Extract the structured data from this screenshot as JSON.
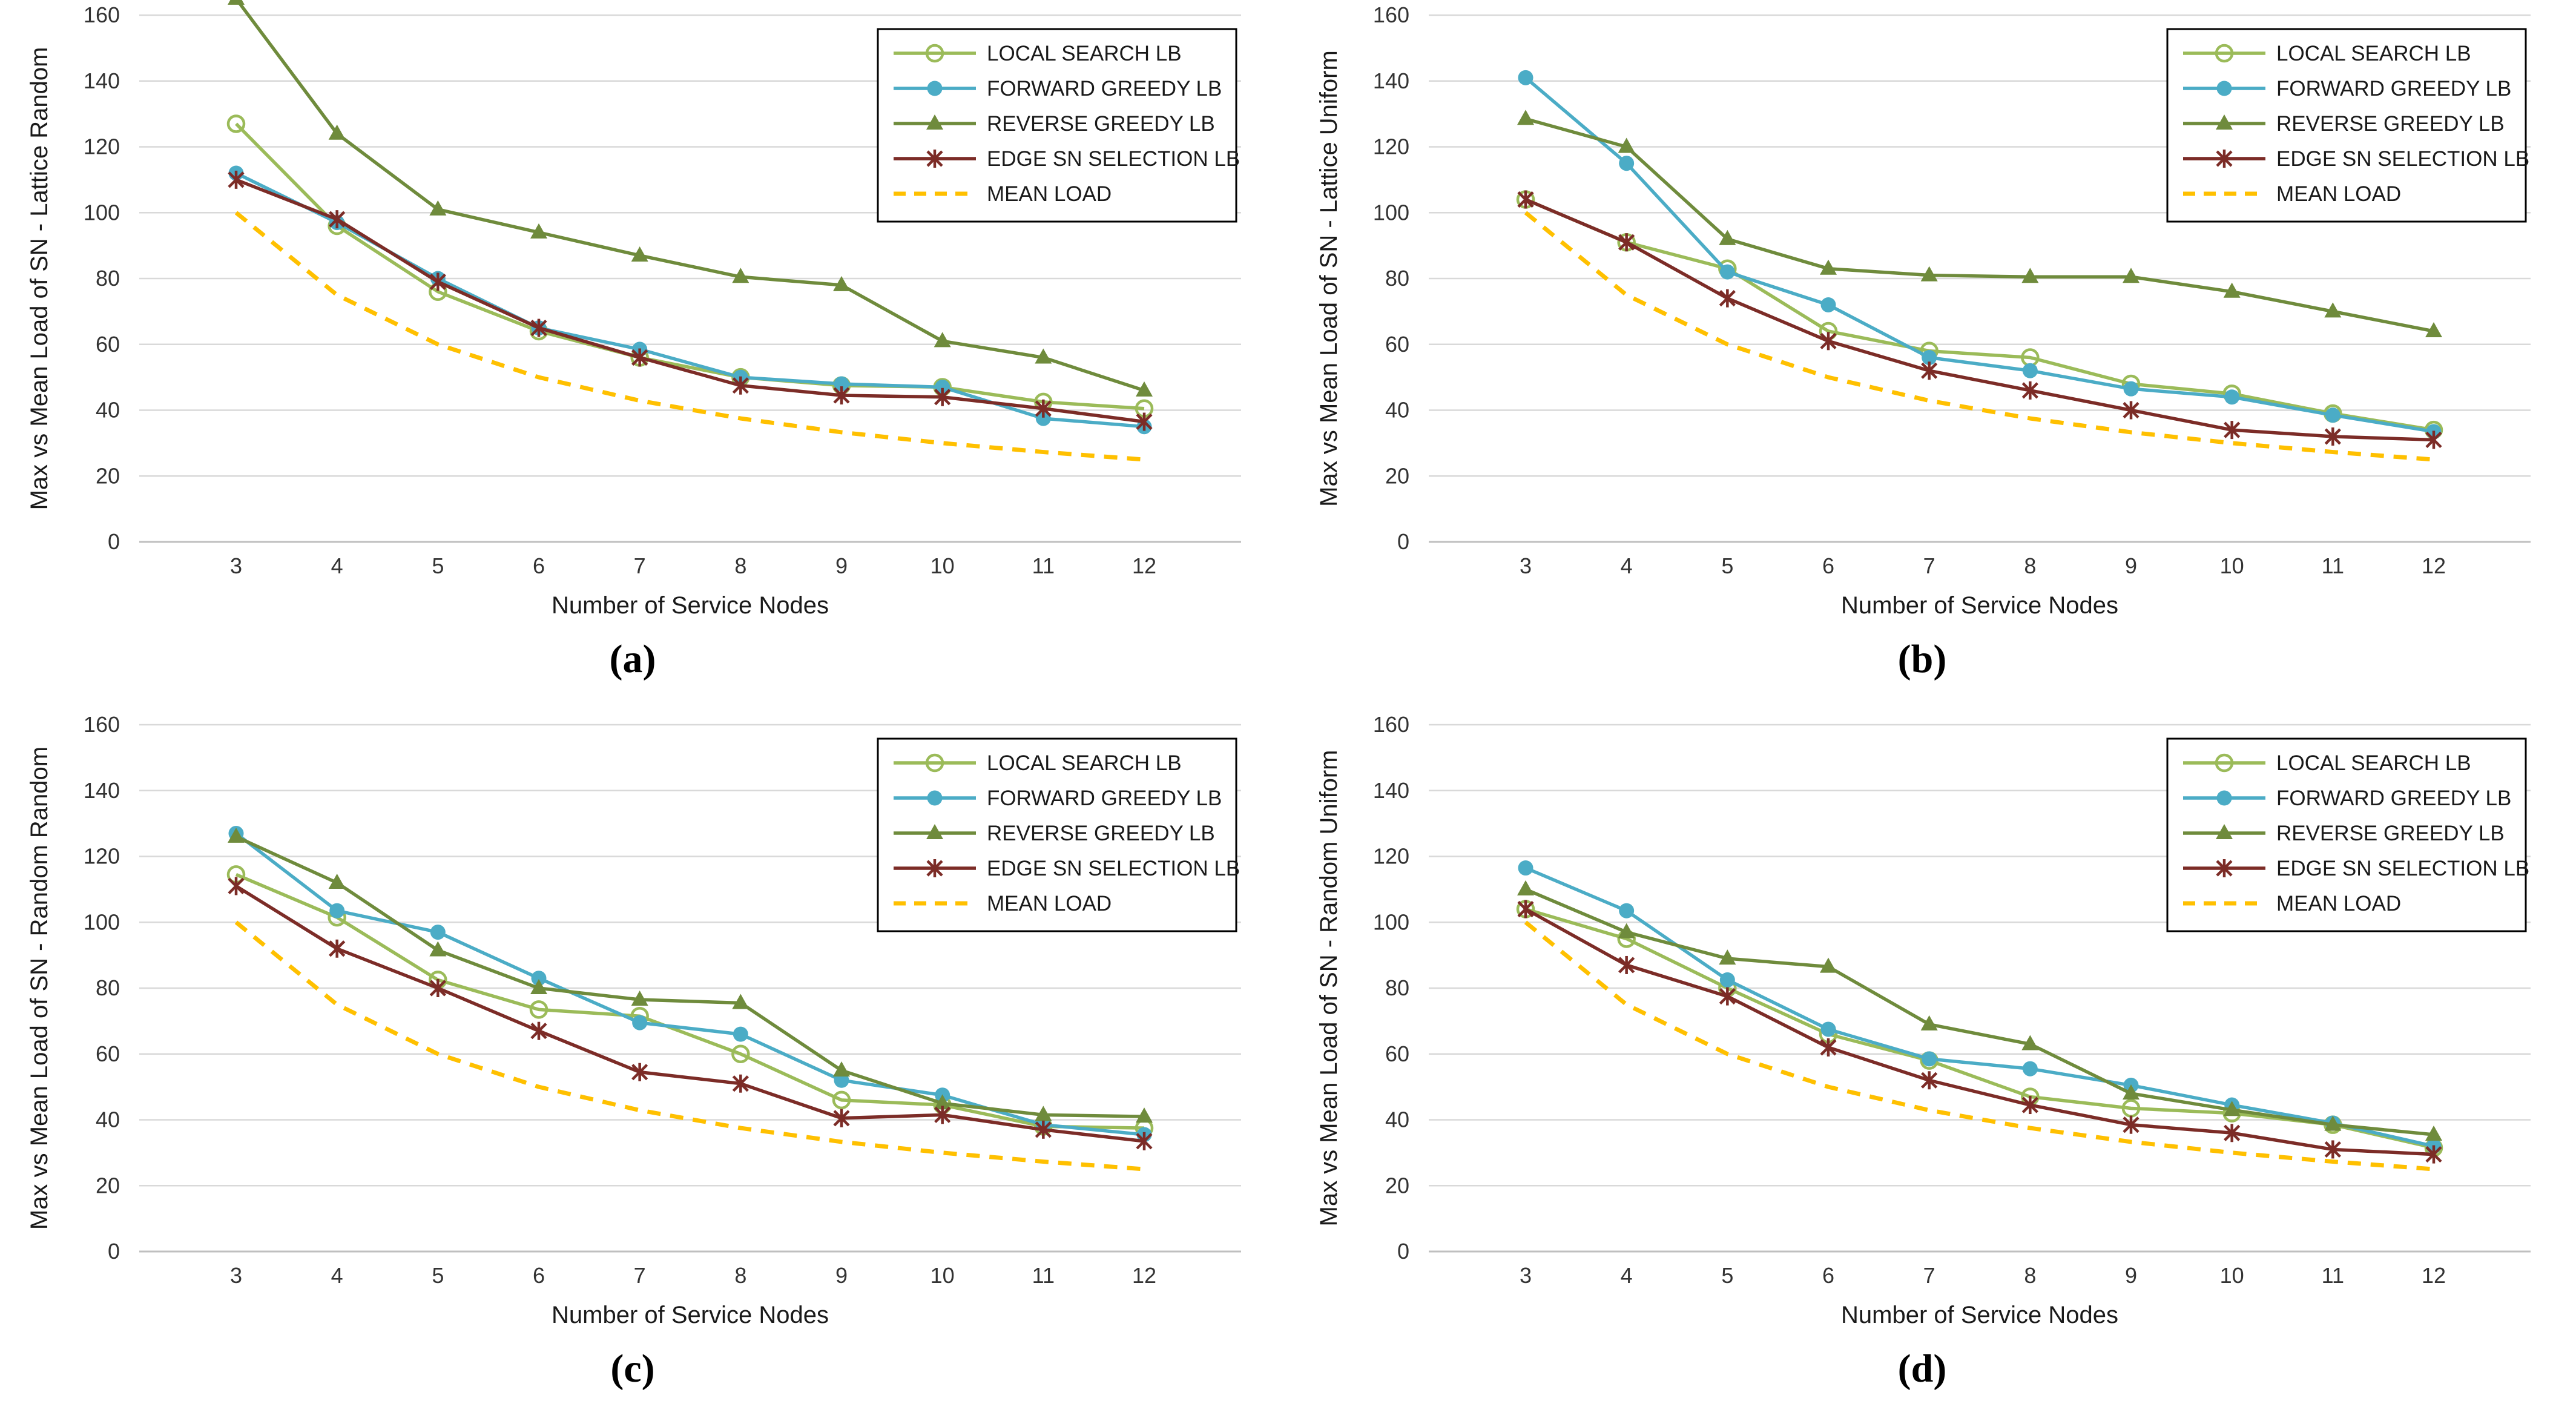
{
  "figure": {
    "xlabel": "Number of Service Nodes",
    "categories": [
      3,
      4,
      5,
      6,
      7,
      8,
      9,
      10,
      11,
      12
    ],
    "ylim": [
      0,
      160
    ],
    "ytick_step": 20,
    "grid_color": "#D9D9D9",
    "axis_color": "#BFBFBF",
    "legend_entries": [
      "LOCAL SEARCH LB",
      "FORWARD GREEDY LB",
      "REVERSE GREEDY LB",
      "EDGE SN SELECTION LB",
      "MEAN LOAD"
    ],
    "colors": {
      "local_search": "#9BBB59",
      "forward_greedy": "#4BACC6",
      "reverse_greedy": "#6F8B3C",
      "edge_sn": "#7C2C27",
      "mean_load": "#FFC000"
    }
  },
  "chart_data": [
    {
      "type": "line",
      "caption": "(a)",
      "ylabel": "Max vs Mean Load of SN - Lattice Random",
      "xlabel": "Number of Service Nodes",
      "x": [
        3,
        4,
        5,
        6,
        7,
        8,
        9,
        10,
        11,
        12
      ],
      "ylim": [
        0,
        160
      ],
      "legend_position": "top-right",
      "series": [
        {
          "name": "LOCAL SEARCH LB",
          "color": "#9BBB59",
          "marker": "circle-open",
          "dash": false,
          "values": [
            127,
            96,
            76,
            64,
            56,
            50,
            47.5,
            47,
            42.5,
            40.5
          ]
        },
        {
          "name": "FORWARD GREEDY LB",
          "color": "#4BACC6",
          "marker": "circle",
          "dash": false,
          "values": [
            112,
            97,
            80,
            65,
            58.5,
            50,
            48,
            47,
            37.5,
            35
          ]
        },
        {
          "name": "REVERSE GREEDY LB",
          "color": "#6F8B3C",
          "marker": "triangle",
          "dash": false,
          "values": [
            165,
            124,
            101,
            94,
            87,
            80.5,
            78,
            61,
            56,
            46
          ]
        },
        {
          "name": "EDGE SN SELECTION LB",
          "color": "#7C2C27",
          "marker": "star",
          "dash": false,
          "values": [
            110,
            98,
            79,
            65,
            56,
            47.5,
            44.5,
            44,
            40.5,
            36.5
          ]
        },
        {
          "name": "MEAN LOAD",
          "color": "#FFC000",
          "marker": "none",
          "dash": true,
          "values": [
            100,
            75,
            60,
            50,
            42.9,
            37.5,
            33.3,
            30,
            27.3,
            25
          ]
        }
      ]
    },
    {
      "type": "line",
      "caption": "(b)",
      "ylabel": "Max vs Mean Load of SN - Lattice Uniform",
      "xlabel": "Number of Service Nodes",
      "x": [
        3,
        4,
        5,
        6,
        7,
        8,
        9,
        10,
        11,
        12
      ],
      "ylim": [
        0,
        160
      ],
      "legend_position": "top-right",
      "series": [
        {
          "name": "LOCAL SEARCH LB",
          "color": "#9BBB59",
          "marker": "circle-open",
          "dash": false,
          "values": [
            104,
            91,
            83,
            64,
            58,
            56,
            48,
            45,
            39,
            34
          ]
        },
        {
          "name": "FORWARD GREEDY LB",
          "color": "#4BACC6",
          "marker": "circle",
          "dash": false,
          "values": [
            141,
            115,
            82,
            72,
            56,
            52,
            46.5,
            44,
            38.5,
            33.5
          ]
        },
        {
          "name": "REVERSE GREEDY LB",
          "color": "#6F8B3C",
          "marker": "triangle",
          "dash": false,
          "values": [
            128.5,
            120,
            92,
            83,
            81,
            80.5,
            80.5,
            76,
            70,
            64
          ]
        },
        {
          "name": "EDGE SN SELECTION LB",
          "color": "#7C2C27",
          "marker": "star",
          "dash": false,
          "values": [
            104,
            91,
            74,
            61,
            52,
            46,
            40,
            34,
            32,
            31
          ]
        },
        {
          "name": "MEAN LOAD",
          "color": "#FFC000",
          "marker": "none",
          "dash": true,
          "values": [
            100,
            75,
            60,
            50,
            42.9,
            37.5,
            33.3,
            30,
            27.3,
            25
          ]
        }
      ]
    },
    {
      "type": "line",
      "caption": "(c)",
      "ylabel": "Max vs Mean Load of SN - Random Random",
      "xlabel": "Number of Service Nodes",
      "x": [
        3,
        4,
        5,
        6,
        7,
        8,
        9,
        10,
        11,
        12
      ],
      "ylim": [
        0,
        160
      ],
      "legend_position": "top-right",
      "series": [
        {
          "name": "LOCAL SEARCH LB",
          "color": "#9BBB59",
          "marker": "circle-open",
          "dash": false,
          "values": [
            114.5,
            101.5,
            82.5,
            73.5,
            71.5,
            60,
            46,
            44.5,
            38,
            37.5
          ]
        },
        {
          "name": "FORWARD GREEDY LB",
          "color": "#4BACC6",
          "marker": "circle",
          "dash": false,
          "values": [
            127,
            103.5,
            97,
            83,
            69.5,
            66,
            52,
            47.5,
            38.5,
            35.5
          ]
        },
        {
          "name": "REVERSE GREEDY LB",
          "color": "#6F8B3C",
          "marker": "triangle",
          "dash": false,
          "values": [
            126,
            112,
            91.5,
            80,
            76.5,
            75.5,
            55,
            45,
            41.5,
            41
          ]
        },
        {
          "name": "EDGE SN SELECTION LB",
          "color": "#7C2C27",
          "marker": "star",
          "dash": false,
          "values": [
            111,
            92,
            80,
            67,
            54.5,
            51,
            40.5,
            41.5,
            37,
            33.5
          ]
        },
        {
          "name": "MEAN LOAD",
          "color": "#FFC000",
          "marker": "none",
          "dash": true,
          "values": [
            100,
            75,
            60,
            50,
            42.9,
            37.5,
            33.3,
            30,
            27.3,
            25
          ]
        }
      ]
    },
    {
      "type": "line",
      "caption": "(d)",
      "ylabel": "Max vs Mean Load of SN - Random Uniform",
      "xlabel": "Number of Service Nodes",
      "x": [
        3,
        4,
        5,
        6,
        7,
        8,
        9,
        10,
        11,
        12
      ],
      "ylim": [
        0,
        160
      ],
      "legend_position": "top-right",
      "series": [
        {
          "name": "LOCAL SEARCH LB",
          "color": "#9BBB59",
          "marker": "circle-open",
          "dash": false,
          "values": [
            104,
            95,
            80,
            66,
            58,
            47,
            43.5,
            42,
            38.5,
            31.5
          ]
        },
        {
          "name": "FORWARD GREEDY LB",
          "color": "#4BACC6",
          "marker": "circle",
          "dash": false,
          "values": [
            116.5,
            103.5,
            82.5,
            67.5,
            58.5,
            55.5,
            50.5,
            44.5,
            39,
            32
          ]
        },
        {
          "name": "REVERSE GREEDY LB",
          "color": "#6F8B3C",
          "marker": "triangle",
          "dash": false,
          "values": [
            110,
            97,
            89,
            86.5,
            69,
            63,
            48,
            43,
            38.5,
            35.5
          ]
        },
        {
          "name": "EDGE SN SELECTION LB",
          "color": "#7C2C27",
          "marker": "star",
          "dash": false,
          "values": [
            104,
            87,
            77.5,
            62,
            52,
            44.5,
            38.5,
            36,
            31,
            29.5
          ]
        },
        {
          "name": "MEAN LOAD",
          "color": "#FFC000",
          "marker": "none",
          "dash": true,
          "values": [
            100,
            75,
            60,
            50,
            42.9,
            37.5,
            33.3,
            30,
            27.3,
            25
          ]
        }
      ]
    }
  ]
}
